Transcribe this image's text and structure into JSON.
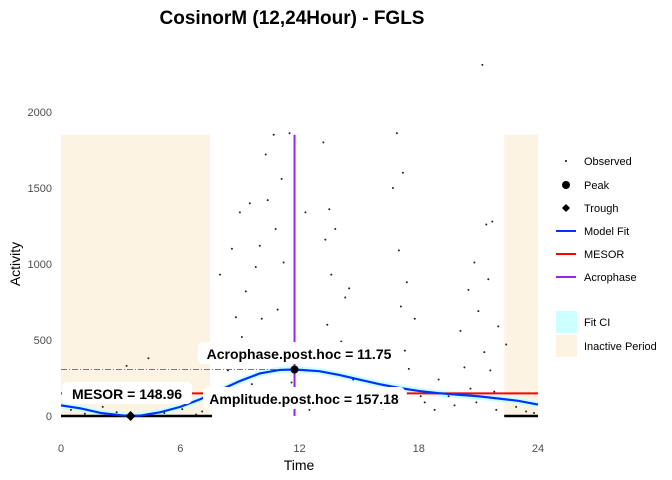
{
  "chart_data": {
    "type": "scatter",
    "title": "CosinorM (12,24Hour) - FGLS",
    "xlabel": "Time",
    "ylabel": "Activity",
    "xlim": [
      0,
      24
    ],
    "ylim": [
      0,
      2000
    ],
    "xticks": [
      0,
      6,
      12,
      18,
      24
    ],
    "yticks": [
      0,
      500,
      1000,
      1500,
      2000
    ],
    "grid": false,
    "legend_position": "right",
    "legend": [
      {
        "label": "Observed",
        "kind": "point-small",
        "color": "#000000"
      },
      {
        "label": "Peak",
        "kind": "point",
        "color": "#000000"
      },
      {
        "label": "Trough",
        "kind": "diamond",
        "color": "#000000"
      },
      {
        "label": "Model Fit",
        "kind": "line",
        "color": "#0033ff"
      },
      {
        "label": "MESOR",
        "kind": "line",
        "color": "#ff0000"
      },
      {
        "label": "Acrophase",
        "kind": "line",
        "color": "#a020f0"
      },
      {
        "label": "Fit CI",
        "kind": "fill",
        "color": "#ccffff"
      },
      {
        "label": "Inactive Period",
        "kind": "fill",
        "color": "#fdf3e3"
      }
    ],
    "inactive_periods": [
      [
        0,
        7.5
      ],
      [
        22.3,
        24
      ]
    ],
    "inactive_height": 1850,
    "mesor": 148.96,
    "mesor_segments": [
      [
        0,
        7.6
      ],
      [
        17.4,
        24
      ]
    ],
    "acrophase": 11.75,
    "amplitude": 157.18,
    "peak": {
      "x": 11.75,
      "y": 306
    },
    "trough": {
      "x": 3.5,
      "y": 0
    },
    "model_fit": {
      "x": [
        0,
        1,
        2,
        3,
        3.5,
        4,
        5,
        6,
        7,
        8,
        9,
        10,
        11,
        11.75,
        13,
        14,
        15,
        16,
        17,
        18,
        19,
        20,
        21,
        22,
        23,
        24
      ],
      "y": [
        70,
        50,
        20,
        5,
        0,
        3,
        25,
        60,
        110,
        170,
        230,
        280,
        303,
        306,
        295,
        270,
        240,
        210,
        185,
        165,
        150,
        140,
        130,
        115,
        100,
        75
      ]
    },
    "ci_halfwidth": 22,
    "observed": [
      [
        0.5,
        40
      ],
      [
        1.2,
        15
      ],
      [
        2.1,
        60
      ],
      [
        2.8,
        25
      ],
      [
        3.3,
        330
      ],
      [
        4.4,
        380
      ],
      [
        5.2,
        20
      ],
      [
        6.1,
        45
      ],
      [
        6.8,
        10
      ],
      [
        7.1,
        30
      ],
      [
        8.0,
        930
      ],
      [
        8.2,
        460
      ],
      [
        8.4,
        300
      ],
      [
        8.6,
        1100
      ],
      [
        8.8,
        650
      ],
      [
        9.0,
        1340
      ],
      [
        9.1,
        520
      ],
      [
        9.3,
        820
      ],
      [
        9.5,
        1400
      ],
      [
        9.6,
        210
      ],
      [
        9.8,
        980
      ],
      [
        10.0,
        1120
      ],
      [
        10.1,
        640
      ],
      [
        10.3,
        1720
      ],
      [
        10.4,
        1420
      ],
      [
        10.5,
        360
      ],
      [
        10.7,
        1850
      ],
      [
        10.8,
        1230
      ],
      [
        10.9,
        700
      ],
      [
        11.1,
        1560
      ],
      [
        11.2,
        1010
      ],
      [
        11.4,
        480
      ],
      [
        11.5,
        1860
      ],
      [
        11.6,
        220
      ],
      [
        11.7,
        80
      ],
      [
        12.3,
        1340
      ],
      [
        12.5,
        40
      ],
      [
        13.2,
        1800
      ],
      [
        13.3,
        1160
      ],
      [
        13.4,
        600
      ],
      [
        13.5,
        1360
      ],
      [
        13.6,
        930
      ],
      [
        13.8,
        1230
      ],
      [
        14.1,
        490
      ],
      [
        14.3,
        780
      ],
      [
        14.5,
        840
      ],
      [
        14.7,
        240
      ],
      [
        15.2,
        60
      ],
      [
        15.6,
        110
      ],
      [
        16.7,
        1500
      ],
      [
        16.9,
        1860
      ],
      [
        17.0,
        1090
      ],
      [
        17.1,
        720
      ],
      [
        17.2,
        1600
      ],
      [
        17.3,
        430
      ],
      [
        17.4,
        880
      ],
      [
        17.5,
        310
      ],
      [
        17.8,
        640
      ],
      [
        18.3,
        90
      ],
      [
        18.8,
        40
      ],
      [
        19.0,
        240
      ],
      [
        19.5,
        130
      ],
      [
        20.1,
        560
      ],
      [
        20.3,
        320
      ],
      [
        20.5,
        830
      ],
      [
        20.6,
        180
      ],
      [
        20.8,
        1010
      ],
      [
        21.0,
        690
      ],
      [
        21.2,
        2310
      ],
      [
        21.3,
        420
      ],
      [
        21.4,
        1260
      ],
      [
        21.5,
        900
      ],
      [
        21.6,
        300
      ],
      [
        21.7,
        1280
      ],
      [
        21.8,
        160
      ],
      [
        22.0,
        590
      ],
      [
        22.4,
        470
      ],
      [
        22.9,
        60
      ],
      [
        23.4,
        30
      ],
      [
        23.8,
        20
      ],
      [
        9.4,
        150
      ],
      [
        10.2,
        90
      ],
      [
        12.8,
        120
      ],
      [
        13.9,
        60
      ],
      [
        15.0,
        140
      ],
      [
        16.2,
        50
      ],
      [
        18.1,
        130
      ],
      [
        19.8,
        70
      ],
      [
        20.9,
        90
      ],
      [
        21.9,
        40
      ]
    ],
    "annotations": [
      {
        "text": "MESOR = 148.96"
      },
      {
        "text": "Acrophase.post.hoc = 11.75"
      },
      {
        "text": "Amplitude.post.hoc = 157.18"
      }
    ]
  }
}
